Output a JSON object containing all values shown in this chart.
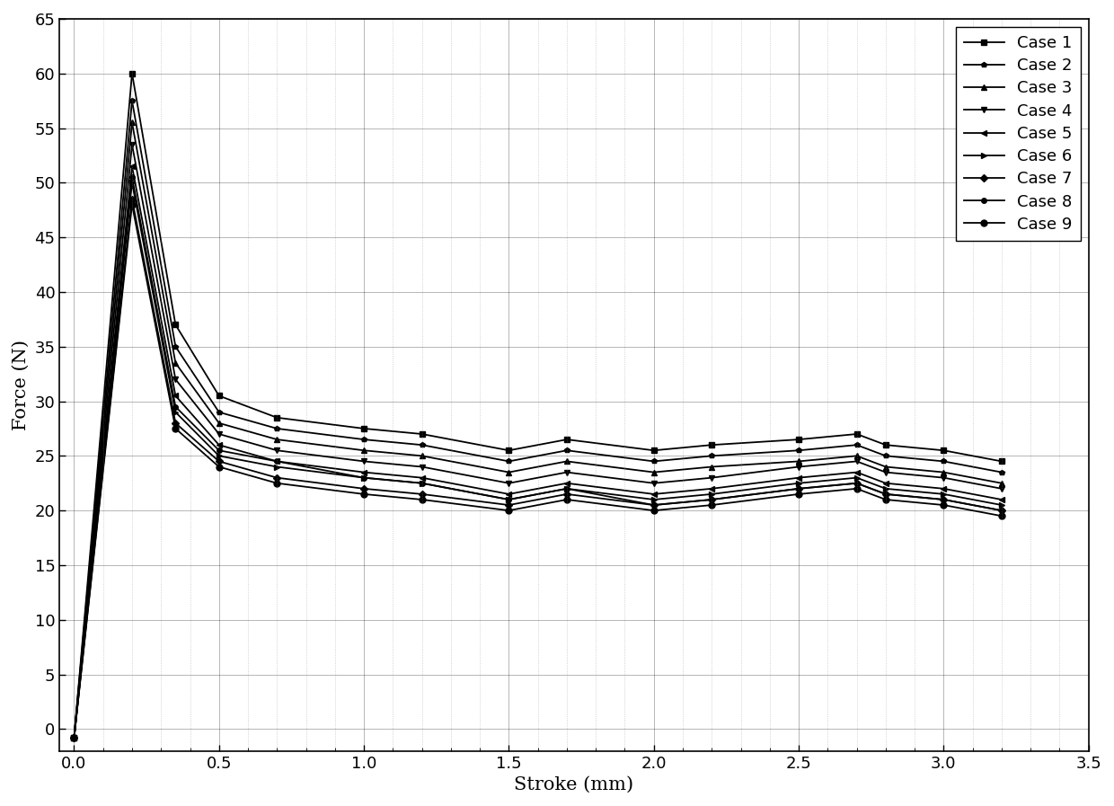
{
  "title": "",
  "xlabel": "Stroke (mm)",
  "ylabel": "Force (N)",
  "xlim": [
    -0.05,
    3.5
  ],
  "ylim": [
    -2,
    65
  ],
  "xticks": [
    0.0,
    0.5,
    1.0,
    1.5,
    2.0,
    2.5,
    3.0,
    3.5
  ],
  "yticks": [
    0,
    5,
    10,
    15,
    20,
    25,
    30,
    35,
    40,
    45,
    50,
    55,
    60,
    65
  ],
  "legend_labels": [
    "Case 1",
    "Case 2",
    "Case 3",
    "Case 4",
    "Case 5",
    "Case 6",
    "Case 7",
    "Case 8",
    "Case 9"
  ],
  "cases": {
    "Case 1": {
      "x": [
        0.0,
        0.2,
        0.35,
        0.5,
        0.7,
        1.0,
        1.2,
        1.5,
        1.7,
        2.0,
        2.2,
        2.5,
        2.7,
        2.8,
        3.0,
        3.2
      ],
      "y": [
        -0.8,
        60.0,
        37.0,
        30.5,
        28.5,
        27.5,
        27.0,
        25.5,
        26.5,
        25.5,
        26.0,
        26.5,
        27.0,
        26.0,
        25.5,
        24.5
      ]
    },
    "Case 2": {
      "x": [
        0.0,
        0.2,
        0.35,
        0.5,
        0.7,
        1.0,
        1.2,
        1.5,
        1.7,
        2.0,
        2.2,
        2.5,
        2.7,
        2.8,
        3.0,
        3.2
      ],
      "y": [
        -0.8,
        57.5,
        35.0,
        29.0,
        27.5,
        26.5,
        26.0,
        24.5,
        25.5,
        24.5,
        25.0,
        25.5,
        26.0,
        25.0,
        24.5,
        23.5
      ]
    },
    "Case 3": {
      "x": [
        0.0,
        0.2,
        0.35,
        0.5,
        0.7,
        1.0,
        1.2,
        1.5,
        1.7,
        2.0,
        2.2,
        2.5,
        2.7,
        2.8,
        3.0,
        3.2
      ],
      "y": [
        -0.8,
        55.5,
        33.5,
        28.0,
        26.5,
        25.5,
        25.0,
        23.5,
        24.5,
        23.5,
        24.0,
        24.5,
        25.0,
        24.0,
        23.5,
        22.5
      ]
    },
    "Case 4": {
      "x": [
        0.0,
        0.2,
        0.35,
        0.5,
        0.7,
        1.0,
        1.2,
        1.5,
        1.7,
        2.0,
        2.2,
        2.5,
        2.7,
        2.8,
        3.0,
        3.2
      ],
      "y": [
        -0.8,
        53.5,
        32.0,
        27.0,
        25.5,
        24.5,
        24.0,
        22.5,
        23.5,
        22.5,
        23.0,
        24.0,
        24.5,
        23.5,
        23.0,
        22.0
      ]
    },
    "Case 5": {
      "x": [
        0.0,
        0.2,
        0.35,
        0.5,
        0.7,
        1.0,
        1.2,
        1.5,
        1.7,
        2.0,
        2.2,
        2.5,
        2.7,
        2.8,
        3.0,
        3.2
      ],
      "y": [
        -0.8,
        51.5,
        30.5,
        26.0,
        24.5,
        23.5,
        23.0,
        21.5,
        22.5,
        21.5,
        22.0,
        23.0,
        23.5,
        22.5,
        22.0,
        21.0
      ]
    },
    "Case 6": {
      "x": [
        0.0,
        0.2,
        0.35,
        0.5,
        0.7,
        1.0,
        1.2,
        1.5,
        1.7,
        2.0,
        2.2,
        2.5,
        2.7,
        2.8,
        3.0,
        3.2
      ],
      "y": [
        -0.8,
        50.0,
        29.0,
        25.0,
        24.0,
        23.0,
        22.5,
        21.0,
        22.0,
        21.0,
        21.5,
        22.5,
        23.0,
        22.0,
        21.5,
        20.5
      ]
    },
    "Case 7": {
      "x": [
        0.0,
        0.2,
        0.35,
        0.5,
        0.7,
        1.0,
        1.2,
        1.5,
        1.7,
        2.0,
        2.2,
        2.5,
        2.7,
        2.8,
        3.0,
        3.2
      ],
      "y": [
        -0.8,
        48.5,
        28.0,
        24.5,
        23.0,
        22.0,
        21.5,
        20.5,
        21.5,
        20.5,
        21.0,
        22.0,
        22.5,
        21.5,
        21.0,
        20.0
      ]
    },
    "Case 8": {
      "x": [
        0.0,
        0.2,
        0.35,
        0.5,
        0.7,
        1.0,
        1.2,
        1.5,
        1.7,
        2.0,
        2.2,
        2.5,
        2.7,
        2.8,
        3.0,
        3.2
      ],
      "y": [
        -0.8,
        50.5,
        29.5,
        25.5,
        24.5,
        23.0,
        22.5,
        21.0,
        22.0,
        20.5,
        21.0,
        22.0,
        22.5,
        21.5,
        21.0,
        20.0
      ]
    },
    "Case 9": {
      "x": [
        0.0,
        0.2,
        0.35,
        0.5,
        0.7,
        1.0,
        1.2,
        1.5,
        1.7,
        2.0,
        2.2,
        2.5,
        2.7,
        2.8,
        3.0,
        3.2
      ],
      "y": [
        -0.8,
        48.0,
        27.5,
        24.0,
        22.5,
        21.5,
        21.0,
        20.0,
        21.0,
        20.0,
        20.5,
        21.5,
        22.0,
        21.0,
        20.5,
        19.5
      ]
    }
  },
  "markers": {
    "Case 1": "s",
    "Case 2": "p",
    "Case 3": "^",
    "Case 4": "v",
    "Case 5": "<",
    "Case 6": ">",
    "Case 7": "D",
    "Case 8": "o",
    "Case 9": "o"
  },
  "marker_sizes": {
    "Case 1": 4,
    "Case 2": 4,
    "Case 3": 5,
    "Case 4": 5,
    "Case 5": 5,
    "Case 6": 5,
    "Case 7": 4,
    "Case 8": 4,
    "Case 9": 5
  },
  "line_color": "#000000",
  "linewidth": 1.3,
  "grid_major_color": "#000000",
  "grid_minor_color": "#888888",
  "background_color": "#ffffff",
  "legend_fontsize": 13,
  "axis_fontsize": 15,
  "tick_fontsize": 13
}
